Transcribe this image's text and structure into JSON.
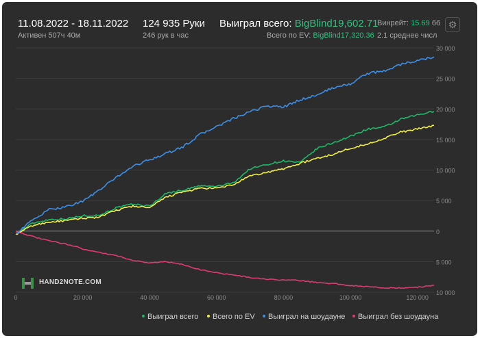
{
  "header": {
    "date_range": "11.08.2022 - 18.11.2022",
    "active": "Активен 507ч 40м",
    "hands": "124 935 Руки",
    "hands_per_hour": "246 рук в час",
    "won_total_label": "Выиграл всего:",
    "won_total_value": "BigBlind19,602.71",
    "ev_total_label": "Всего по EV:",
    "ev_total_value": "BigBlind17,320.36",
    "winrate_label": "Винрейт:",
    "winrate_value": "15.69",
    "winrate_unit": "бб",
    "average_text": "2.1 среднее числ"
  },
  "logo_text": "HAND2NOTE.COM",
  "colors": {
    "background": "#2c2c2c",
    "won_total": "#1fb868",
    "by_ev": "#f2ee4a",
    "showdown": "#3f8fe6",
    "non_showdown": "#dc3d71",
    "accent_text": "#2ec27e"
  },
  "icons": {
    "settings": "gear-icon"
  },
  "chart_data": {
    "type": "line",
    "title": "",
    "xlabel": "",
    "ylabel": "",
    "xlim": [
      0,
      125000
    ],
    "ylim": [
      -10000,
      30000
    ],
    "x_ticks": [
      0,
      20000,
      40000,
      60000,
      80000,
      100000,
      120000
    ],
    "x_tick_labels": [
      "0",
      "20 000",
      "40 000",
      "60 000",
      "80 000",
      "100 000",
      "120 000"
    ],
    "y_ticks": [
      30000,
      25000,
      20000,
      15000,
      10000,
      5000,
      0,
      -5000,
      -10000
    ],
    "y_tick_labels": [
      "30 000",
      "25 000",
      "20 000",
      "15 000",
      "10 000",
      "5 000",
      "0",
      "5 000",
      "10 000"
    ],
    "grid": true,
    "legend_position": "bottom-right",
    "x": [
      0,
      5000,
      10000,
      15000,
      20000,
      25000,
      30000,
      35000,
      40000,
      45000,
      50000,
      55000,
      60000,
      65000,
      70000,
      75000,
      80000,
      85000,
      90000,
      95000,
      100000,
      105000,
      110000,
      115000,
      120000,
      125000
    ],
    "series": [
      {
        "name": "Выиграл всего",
        "color": "#1fb868",
        "values": [
          -500,
          1300,
          1900,
          2000,
          2500,
          2600,
          3800,
          4400,
          4100,
          6200,
          6700,
          7400,
          7300,
          7900,
          10200,
          10900,
          11500,
          11200,
          13500,
          14500,
          15500,
          16700,
          17000,
          18300,
          19000,
          19600
        ]
      },
      {
        "name": "Всего по EV",
        "color": "#f2ee4a",
        "values": [
          -500,
          900,
          1500,
          1700,
          2100,
          2300,
          3400,
          4100,
          3800,
          5600,
          6400,
          7000,
          7000,
          7600,
          9000,
          9600,
          10200,
          11100,
          11900,
          12600,
          13600,
          14200,
          15200,
          16200,
          16700,
          17300
        ]
      },
      {
        "name": "Выиграл на шоудауне",
        "color": "#3f8fe6",
        "values": [
          -400,
          1800,
          3500,
          4000,
          4900,
          6700,
          8800,
          10600,
          11700,
          12700,
          13800,
          15800,
          17100,
          18400,
          19500,
          20500,
          20300,
          21500,
          22300,
          23500,
          24100,
          25800,
          26200,
          27300,
          27900,
          28500
        ]
      },
      {
        "name": "Выиграл без шоудауна",
        "color": "#dc3d71",
        "values": [
          0,
          -900,
          -1600,
          -2100,
          -2900,
          -3500,
          -4000,
          -4800,
          -5200,
          -5000,
          -5500,
          -6300,
          -6800,
          -7200,
          -7600,
          -7900,
          -8000,
          -8100,
          -8400,
          -8600,
          -8900,
          -9100,
          -9300,
          -9300,
          -9200,
          -8900
        ]
      }
    ]
  }
}
